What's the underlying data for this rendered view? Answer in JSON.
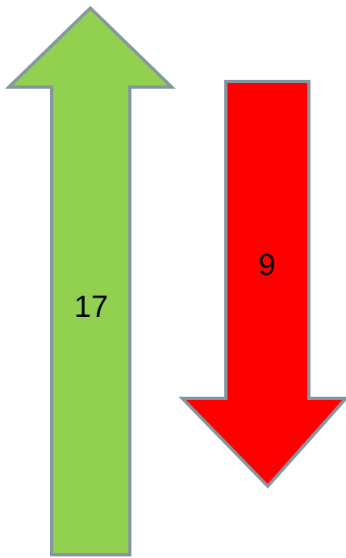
{
  "colors": {
    "background": "#ffffff",
    "up_fill": "#92d050",
    "down_fill": "#ff0000",
    "outline": "#8497a0",
    "text": "#000000"
  },
  "arrows": {
    "up": {
      "direction": "up",
      "icon": "arrow-up-icon",
      "value": "17"
    },
    "down": {
      "direction": "down",
      "icon": "arrow-down-icon",
      "value": "9"
    }
  }
}
